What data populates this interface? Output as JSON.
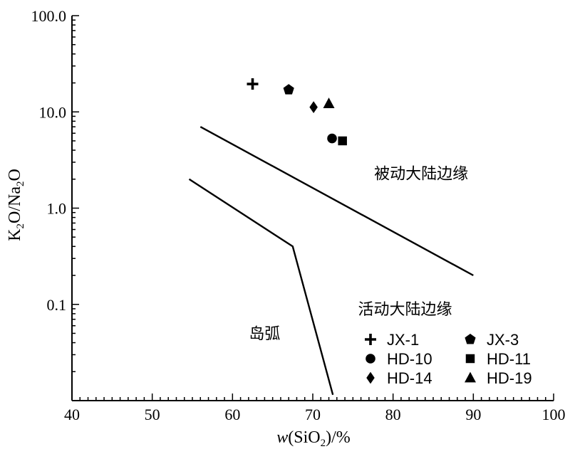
{
  "chart_data": {
    "type": "scatter",
    "xlabel": {
      "prefix": "w",
      "main": "(SiO",
      "sub": "2",
      "suffix": ")/%"
    },
    "ylabel": {
      "k": "K",
      "k_sub": "2",
      "mid": "O/Na",
      "na_sub": "2",
      "end": "O"
    },
    "xlim": [
      40,
      100
    ],
    "ylim": [
      0.01,
      100
    ],
    "yscale": "log",
    "xticks": [
      40,
      50,
      60,
      70,
      80,
      90,
      100
    ],
    "xtick_labels": [
      "40",
      "50",
      "60",
      "70",
      "80",
      "90",
      "100"
    ],
    "yticks": [
      0.1,
      1,
      10,
      100
    ],
    "ytick_labels": [
      "0.1",
      "1.0",
      "10.0",
      "100.0"
    ],
    "grid": false,
    "boundaries": [
      {
        "name": "active-passive-boundary",
        "points": [
          [
            56,
            7.0
          ],
          [
            90,
            0.2
          ]
        ]
      },
      {
        "name": "arc-active-boundary",
        "points": [
          [
            54.6,
            2.0
          ],
          [
            67.5,
            0.4
          ],
          [
            72.5,
            0.0115
          ]
        ]
      }
    ],
    "regions": [
      {
        "label": "被动大陆边缘",
        "x": 83.5,
        "y": 2.3
      },
      {
        "label": "活动大陆边缘",
        "x": 81.5,
        "y": 0.09
      },
      {
        "label": "岛弧",
        "x": 64,
        "y": 0.05
      }
    ],
    "series": [
      {
        "name": "JX-1",
        "marker": "plus",
        "x": 62.5,
        "y": 19.5
      },
      {
        "name": "JX-3",
        "marker": "pentagon",
        "x": 67,
        "y": 17
      },
      {
        "name": "HD-10",
        "marker": "circle",
        "x": 72.4,
        "y": 5.3
      },
      {
        "name": "HD-11",
        "marker": "square",
        "x": 73.7,
        "y": 5.0
      },
      {
        "name": "HD-14",
        "marker": "diamond",
        "x": 70.1,
        "y": 11.2
      },
      {
        "name": "HD-19",
        "marker": "triangle",
        "x": 72,
        "y": 12.2
      }
    ],
    "legend_order": [
      "JX-1",
      "JX-3",
      "HD-10",
      "HD-11",
      "HD-14",
      "HD-19"
    ],
    "legend_position": "bottom-right"
  }
}
